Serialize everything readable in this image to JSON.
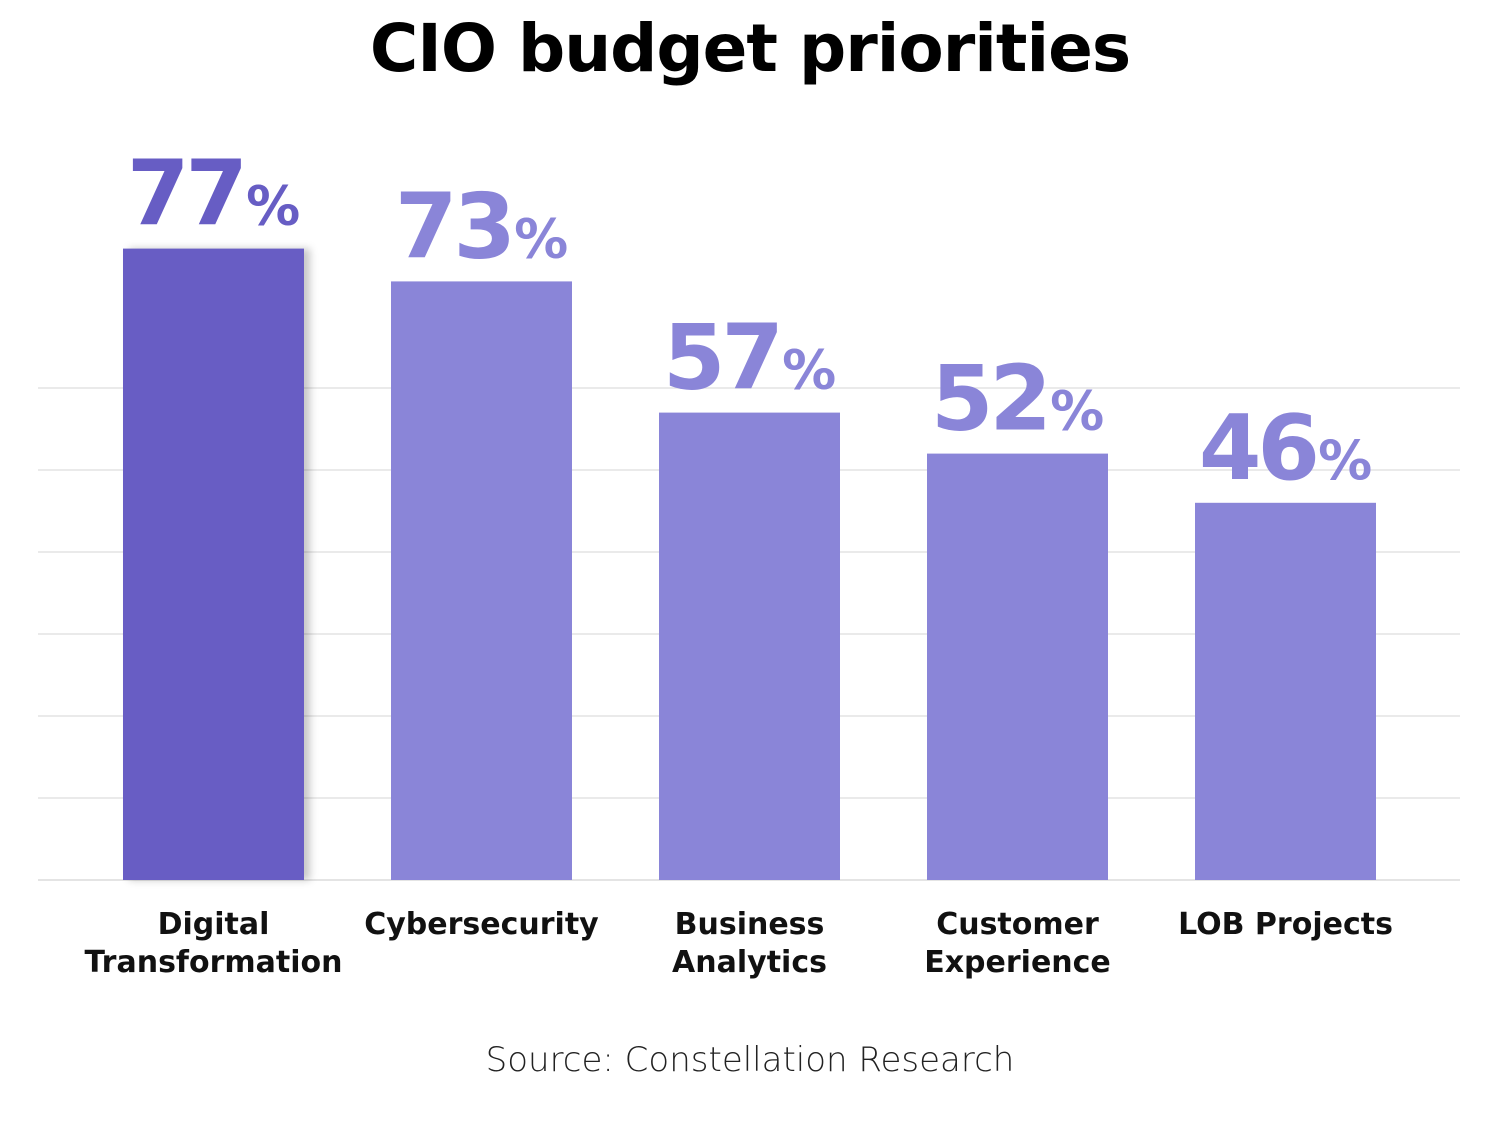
{
  "title": "CIO budget priorities",
  "source": "Source: Constellation Research",
  "colors": {
    "highlight": "#675dc4",
    "bar": "#8a85d8",
    "label_highlight": "#675dc4",
    "label": "#8a85d8",
    "grid": "#e4e4e4"
  },
  "chart_data": {
    "type": "bar",
    "title": "CIO budget priorities",
    "categories": [
      "Digital\nTransformation",
      "Cybersecurity",
      "Business\nAnalytics",
      "Customer\nExperience",
      "LOB Projects"
    ],
    "values": [
      77,
      73,
      57,
      52,
      46
    ],
    "value_labels": [
      "77",
      "73",
      "57",
      "52",
      "46"
    ],
    "value_suffix": "%",
    "highlight_index": 0,
    "ylim": [
      0,
      70
    ],
    "grid": true,
    "xlabel": "",
    "ylabel": ""
  }
}
